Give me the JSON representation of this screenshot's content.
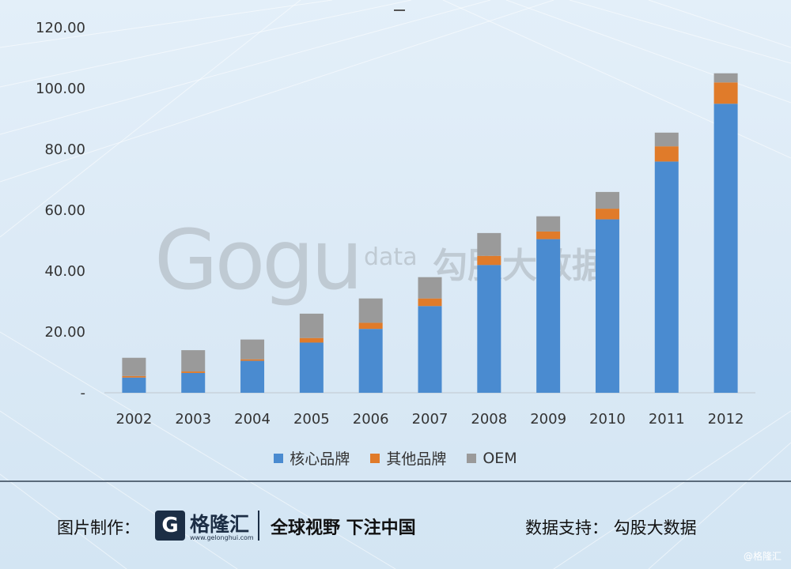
{
  "chart_data": {
    "type": "bar",
    "stacked": true,
    "categories": [
      "2002",
      "2003",
      "2004",
      "2005",
      "2006",
      "2007",
      "2008",
      "2009",
      "2010",
      "2011",
      "2012"
    ],
    "series": [
      {
        "name": "核心品牌",
        "color": "#4a8bd0",
        "values": [
          5,
          6.5,
          10.5,
          16.5,
          21,
          28.5,
          42,
          50.5,
          57,
          76,
          95
        ]
      },
      {
        "name": "其他品牌",
        "color": "#e07b2a",
        "values": [
          0.5,
          0.5,
          0.5,
          1.5,
          2,
          2.5,
          3,
          2.5,
          3.5,
          5,
          7
        ]
      },
      {
        "name": "OEM",
        "color": "#9a9a9a",
        "values": [
          6,
          7,
          6.5,
          8,
          8,
          7,
          7.5,
          5,
          5.5,
          4.5,
          3
        ]
      }
    ],
    "yticks": [
      "-",
      "20.00",
      "40.00",
      "60.00",
      "80.00",
      "100.00",
      "120.00"
    ],
    "ylim": [
      0,
      120
    ],
    "grid": false,
    "legend": "bottom"
  },
  "watermark": {
    "logo": "Gogu",
    "data": "data",
    "cn": "勾股大数据"
  },
  "footer": {
    "made_by": "图片制作：",
    "brand_name": "格隆汇",
    "brand_url": "www.gelonghui.com",
    "slogan": "全球视野 下注中国",
    "support": "数据支持：  勾股大数据",
    "corner_mark": "@格隆汇"
  }
}
